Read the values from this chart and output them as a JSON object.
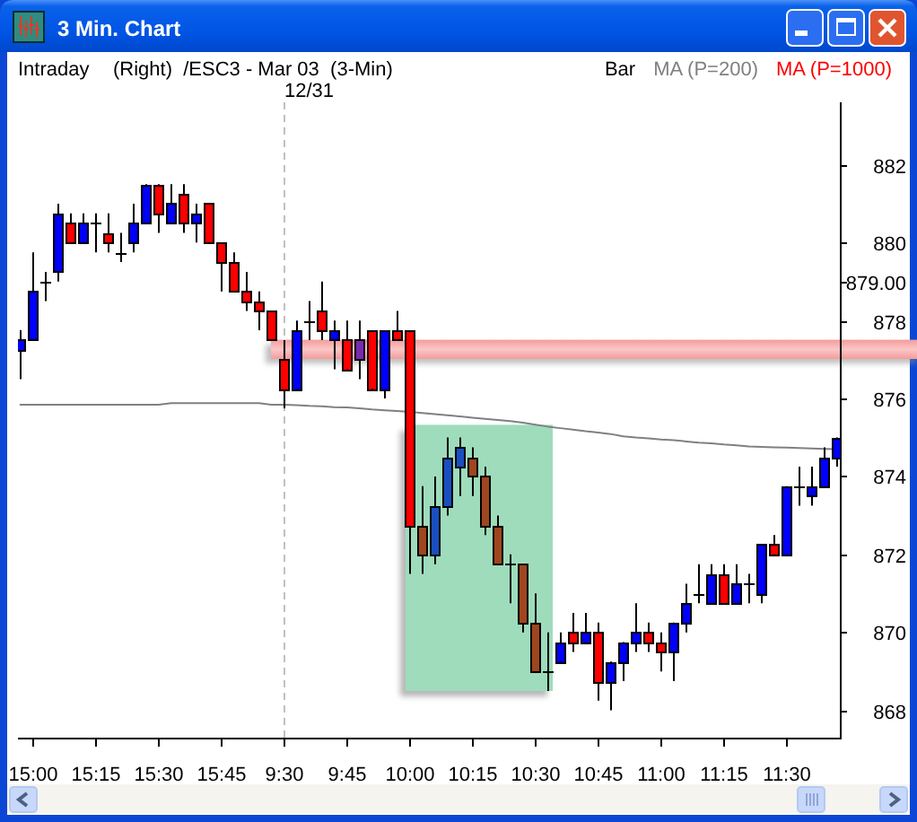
{
  "chart_data": {
    "type": "candlestick",
    "title": "3 Min. Chart",
    "subtitle": "Intraday",
    "annotations": [
      "(Right)  /ESC3 - Mar 03  (3-Min)",
      "Bar",
      "MA (P=1000)"
    ],
    "categories": [
      null,
      "15:00",
      null,
      null,
      null,
      null,
      "15:15",
      null,
      null,
      null,
      null,
      "15:30",
      null,
      null,
      null,
      null,
      "15:45",
      null,
      null,
      null,
      null,
      "9:30",
      null,
      null,
      null,
      null,
      "9:45",
      null,
      null,
      null,
      null,
      "10:00",
      null,
      null,
      null,
      null,
      "10:15",
      null,
      null,
      null,
      null,
      "10:30",
      null,
      null,
      null,
      null,
      "10:45",
      null,
      null,
      null,
      null,
      "11:00",
      null,
      null,
      null,
      null,
      "11:15",
      null,
      null,
      null,
      null,
      "11:30",
      null,
      null,
      null,
      null
    ],
    "ohlc": [
      [
        877.25,
        877.75,
        876.5,
        877.5
      ],
      [
        877.5,
        879.75,
        877.5,
        878.75
      ],
      [
        879,
        879.25,
        878.5,
        879
      ],
      [
        879.25,
        881,
        879,
        880.75
      ],
      [
        880.5,
        880.75,
        880,
        880
      ],
      [
        880,
        880.75,
        880,
        880.5
      ],
      [
        880.5,
        880.75,
        879.75,
        880.5
      ],
      [
        880.25,
        880.75,
        879.75,
        880
      ],
      [
        879.75,
        880.25,
        879.5,
        879.75
      ],
      [
        880,
        881,
        879.75,
        880.5
      ],
      [
        880.5,
        881.5,
        880.5,
        881.5
      ],
      [
        881.5,
        881.5,
        880.25,
        880.75
      ],
      [
        880.5,
        881.5,
        880.5,
        881
      ],
      [
        881.25,
        881.5,
        880.25,
        880.5
      ],
      [
        880.5,
        881,
        880,
        880.75
      ],
      [
        881,
        881,
        880,
        880
      ],
      [
        880,
        880,
        878.75,
        879.5
      ],
      [
        879.5,
        879.75,
        878.75,
        878.75
      ],
      [
        878.75,
        879.25,
        878.25,
        878.5
      ],
      [
        878.5,
        878.75,
        877.75,
        878.25
      ],
      [
        878.25,
        878.25,
        877.5,
        877.5
      ],
      [
        877,
        877.5,
        875.75,
        876.25
      ],
      [
        876.25,
        878,
        876.25,
        877.75
      ],
      [
        878,
        878.5,
        877.5,
        878
      ],
      [
        878.25,
        879,
        877.5,
        877.75
      ],
      [
        877.5,
        878,
        876.75,
        877.75
      ],
      [
        877.5,
        878,
        876.75,
        876.75
      ],
      [
        877,
        878,
        876.5,
        877.5
      ],
      [
        877.75,
        877.75,
        876.25,
        876.25
      ],
      [
        876.25,
        877.75,
        876,
        877.75
      ],
      [
        877.75,
        878.25,
        877.5,
        877.5
      ],
      [
        877.75,
        877.75,
        871.5,
        872.75
      ],
      [
        872.75,
        873.75,
        871.5,
        872
      ],
      [
        872,
        874,
        871.75,
        873.25
      ],
      [
        873.25,
        875,
        873,
        874.5
      ],
      [
        874.25,
        875,
        873.5,
        874.75
      ],
      [
        874.5,
        874.75,
        873.5,
        874
      ],
      [
        874,
        874.25,
        872.5,
        872.75
      ],
      [
        872.75,
        873,
        871.75,
        871.75
      ],
      [
        871.75,
        872,
        870.75,
        871.75
      ],
      [
        871.75,
        871.75,
        870,
        870.25
      ],
      [
        870.25,
        871,
        869,
        869
      ],
      [
        869,
        870,
        868.5,
        869
      ],
      [
        869.25,
        870,
        869.25,
        869.75
      ],
      [
        870,
        870.5,
        869.5,
        869.75
      ],
      [
        869.75,
        870.5,
        869.75,
        870
      ],
      [
        870,
        870.25,
        868.25,
        868.75
      ],
      [
        868.75,
        869.25,
        868,
        869.25
      ],
      [
        869.25,
        869.75,
        868.75,
        869.75
      ],
      [
        869.75,
        870.75,
        869.5,
        870
      ],
      [
        870,
        870.25,
        869.5,
        869.75
      ],
      [
        869.75,
        870,
        869,
        869.5
      ],
      [
        869.5,
        870.25,
        868.75,
        870.25
      ],
      [
        870.25,
        871.25,
        870,
        870.75
      ],
      [
        871,
        871.75,
        870.75,
        871
      ],
      [
        870.75,
        871.75,
        870.75,
        871.5
      ],
      [
        871.5,
        871.75,
        870.75,
        870.75
      ],
      [
        870.75,
        871.75,
        870.75,
        871.25
      ],
      [
        871.25,
        871.5,
        870.75,
        871.25
      ],
      [
        871,
        872.25,
        870.75,
        872.25
      ],
      [
        872.25,
        872.5,
        872,
        872
      ],
      [
        872,
        873.75,
        872,
        873.75
      ],
      [
        873.75,
        874.25,
        873.25,
        873.75
      ],
      [
        873.5,
        874.25,
        873.25,
        873.75
      ],
      [
        873.75,
        874.75,
        873.75,
        874.5
      ],
      [
        874.5,
        875,
        874.25,
        875
      ]
    ],
    "colors": [
      "#0000ff",
      "#0000ff",
      "#000000",
      "#0000ff",
      "#ff0000",
      "#0000ff",
      "#000000",
      "#ff0000",
      "#000000",
      "#0000ff",
      "#0000ff",
      "#ff0000",
      "#0000ff",
      "#ff0000",
      "#0000ff",
      "#ff0000",
      "#ff0000",
      "#ff0000",
      "#ff0000",
      "#ff0000",
      "#ff0000",
      "#ff0000",
      "#0000ff",
      "#000000",
      "#ff0000",
      "#0000ff",
      "#ff0000",
      "#7a2ab0",
      "#ff0000",
      "#0000ff",
      "#ff0000",
      "#ff0000",
      "#a0461e",
      "#1a4fc0",
      "#1a4fc0",
      "#1a4fc0",
      "#a0461e",
      "#a0461e",
      "#a0461e",
      "#000000",
      "#a0461e",
      "#a0461e",
      "#000000",
      "#0000ff",
      "#ff0000",
      "#0000ff",
      "#ff0000",
      "#0000ff",
      "#0000ff",
      "#0000ff",
      "#ff0000",
      "#ff0000",
      "#0000ff",
      "#0000ff",
      "#000000",
      "#0000ff",
      "#ff0000",
      "#0000ff",
      "#000000",
      "#0000ff",
      "#ff0000",
      "#0000ff",
      "#000000",
      "#0000ff",
      "#0000ff",
      "#0000ff"
    ],
    "series": [
      {
        "name": "MA (P=200)",
        "type": "line",
        "color": "#808080",
        "values": [
          875.84,
          875.84,
          875.84,
          875.84,
          875.84,
          875.84,
          875.84,
          875.84,
          875.84,
          875.84,
          875.84,
          875.84,
          875.88,
          875.88,
          875.88,
          875.88,
          875.88,
          875.88,
          875.88,
          875.88,
          875.84,
          875.84,
          875.83,
          875.81,
          875.8,
          875.78,
          875.77,
          875.75,
          875.72,
          875.7,
          875.68,
          875.66,
          875.63,
          875.6,
          875.57,
          875.54,
          875.51,
          875.48,
          875.45,
          875.42,
          875.38,
          875.33,
          875.28,
          875.24,
          875.2,
          875.16,
          875.13,
          875.09,
          875.03,
          875.0,
          874.98,
          874.95,
          874.93,
          874.9,
          874.87,
          874.85,
          874.82,
          874.8,
          874.77,
          874.76,
          874.75,
          874.74,
          874.73,
          874.72,
          874.71,
          874.7
        ]
      }
    ],
    "ylim": [
      867.3,
      883.6
    ],
    "yticks": [
      868,
      870,
      872,
      874,
      876,
      878,
      {
        "value": 879,
        "label": "879.00"
      },
      880,
      882
    ],
    "ref_lines": [
      {
        "axis": "x",
        "value": "9:30",
        "label": "12/31",
        "line_style": "dashed",
        "color": "#c0c0c0"
      }
    ],
    "legend": "top right"
  }
}
